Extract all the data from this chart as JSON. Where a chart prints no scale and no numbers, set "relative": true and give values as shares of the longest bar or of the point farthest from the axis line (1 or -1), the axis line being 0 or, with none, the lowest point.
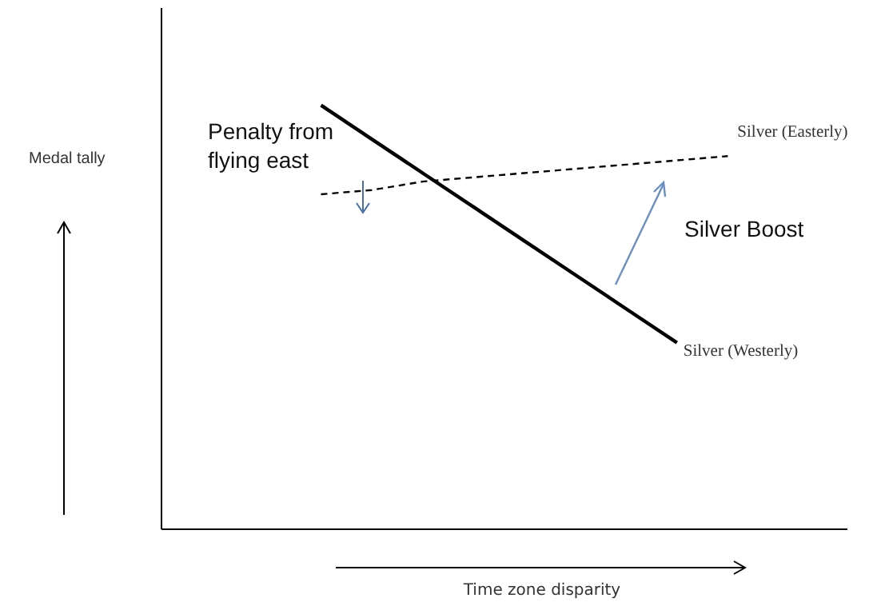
{
  "chart_data": {
    "type": "line",
    "relative": true,
    "xlabel": "Time zone disparity",
    "categories": [
      null,
      null,
      null,
      null,
      null,
      null,
      null,
      null,
      null
    ],
    "series": [
      {
        "name": "Silver (Easterly)",
        "color": "#000000",
        "line_style": "dashed",
        "values": [
          0.79,
          0.8,
          0.82,
          0.83,
          0.84,
          0.85,
          0.86,
          0.87,
          0.88
        ]
      },
      {
        "name": "Silver (Westerly)",
        "color": "#000000",
        "line_style": "solid",
        "values": [
          1,
          0.92,
          0.84,
          0.76,
          0.68,
          0.6,
          0.52,
          0.44,
          null
        ]
      }
    ],
    "annotations": [
      "Penalty from flying east",
      "Silver Boost",
      "Medal tally"
    ],
    "legend": false,
    "grid": false,
    "marker": "none"
  }
}
